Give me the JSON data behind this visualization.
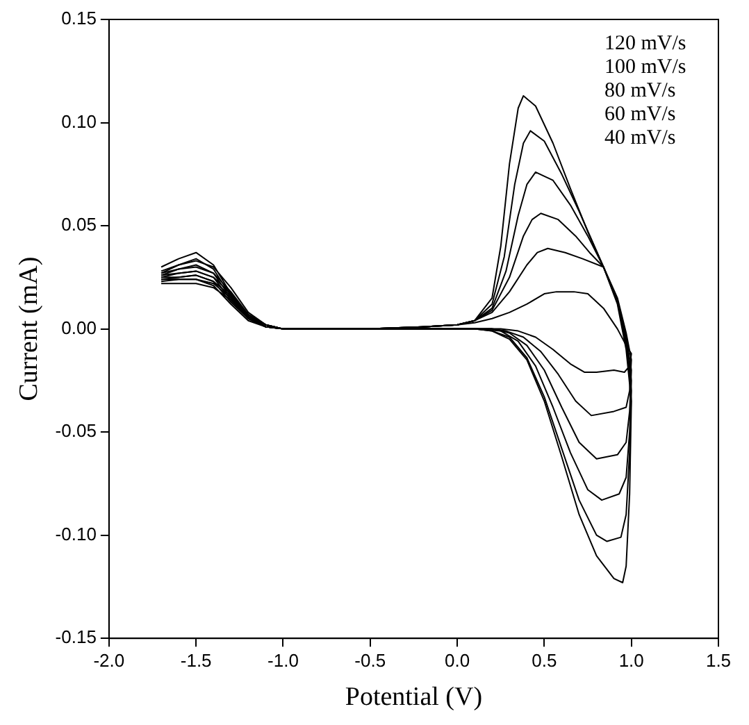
{
  "chart_data": {
    "type": "line",
    "xlabel": "Potential (V)",
    "ylabel": "Current (mA)",
    "xlim": [
      -2.0,
      1.5
    ],
    "ylim": [
      -0.15,
      0.15
    ],
    "xticks": [
      {
        "value": -2,
        "label": "-2.0"
      },
      {
        "value": -1.5,
        "label": "-1.5"
      },
      {
        "value": -1,
        "label": "-1.0"
      },
      {
        "value": -0.5,
        "label": "-0.5"
      },
      {
        "value": 0,
        "label": "0.0"
      },
      {
        "value": 0.5,
        "label": "0.5"
      },
      {
        "value": 1,
        "label": "1.0"
      },
      {
        "value": 1.5,
        "label": "1.5"
      }
    ],
    "yticks": [
      {
        "value": -0.15,
        "label": "-0.15"
      },
      {
        "value": -0.1,
        "label": "-0.10"
      },
      {
        "value": -0.05,
        "label": "-0.05"
      },
      {
        "value": 0,
        "label": "0.00"
      },
      {
        "value": 0.05,
        "label": "0.05"
      },
      {
        "value": 0.1,
        "label": "0.10"
      },
      {
        "value": 0.15,
        "label": "0.15"
      }
    ],
    "grid": false,
    "legend": false,
    "marker": "none",
    "line_style": "solid",
    "annotations": [
      "120 mV/s",
      "100 mV/s",
      "80 mV/s",
      "60 mV/s",
      "40 mV/s"
    ],
    "series": [
      {
        "color": "#000000",
        "x": [
          -1.7,
          -1.6,
          -1.5,
          -1.4,
          -1.3,
          -1.2,
          -1.1,
          -1.0,
          -0.5,
          -0.2,
          0,
          0.1,
          0.2,
          0.25,
          0.3,
          0.35,
          0.38,
          0.45,
          0.55,
          0.65,
          0.75,
          0.84,
          0.92,
          0.97,
          1.0,
          0.99,
          0.97,
          0.95,
          0.9,
          0.8,
          0.7,
          0.6,
          0.5,
          0.4,
          0.3,
          0.2,
          0.1,
          -0.2,
          -1.0,
          -1.1,
          -1.2,
          -1.3,
          -1.4,
          -1.5,
          -1.6,
          -1.7
        ],
        "values": [
          0.03,
          0.034,
          0.037,
          0.031,
          0.017,
          0.006,
          0.001,
          0,
          0,
          0.001,
          0.002,
          0.004,
          0.015,
          0.04,
          0.08,
          0.107,
          0.113,
          0.108,
          0.09,
          0.068,
          0.047,
          0.03,
          0.012,
          -0.01,
          -0.035,
          -0.08,
          -0.115,
          -0.123,
          -0.121,
          -0.11,
          -0.09,
          -0.062,
          -0.035,
          -0.015,
          -0.005,
          -0.001,
          0,
          0,
          0,
          0.002,
          0.008,
          0.02,
          0.03,
          0.033,
          0.031,
          0.027
        ]
      },
      {
        "color": "#000000",
        "x": [
          -1.7,
          -1.6,
          -1.5,
          -1.4,
          -1.3,
          -1.2,
          -1.1,
          -1.0,
          -0.5,
          -0.2,
          0,
          0.1,
          0.2,
          0.27,
          0.33,
          0.38,
          0.42,
          0.5,
          0.6,
          0.7,
          0.84,
          0.92,
          0.97,
          1.0,
          0.99,
          0.97,
          0.94,
          0.86,
          0.8,
          0.7,
          0.6,
          0.5,
          0.4,
          0.3,
          0.2,
          0.1,
          -0.2,
          -1.0,
          -1.1,
          -1.2,
          -1.3,
          -1.4,
          -1.5,
          -1.6,
          -1.7
        ],
        "values": [
          0.028,
          0.031,
          0.034,
          0.029,
          0.016,
          0.006,
          0.001,
          0,
          0,
          0.001,
          0.002,
          0.004,
          0.012,
          0.035,
          0.07,
          0.09,
          0.096,
          0.091,
          0.075,
          0.057,
          0.03,
          0.013,
          -0.008,
          -0.03,
          -0.06,
          -0.09,
          -0.101,
          -0.103,
          -0.1,
          -0.083,
          -0.058,
          -0.033,
          -0.014,
          -0.004,
          -0.001,
          0,
          0,
          0,
          0.002,
          0.007,
          0.018,
          0.027,
          0.03,
          0.029,
          0.026
        ]
      },
      {
        "color": "#000000",
        "x": [
          -1.7,
          -1.6,
          -1.5,
          -1.4,
          -1.3,
          -1.2,
          -1.1,
          -1.0,
          -0.5,
          -0.2,
          0,
          0.1,
          0.2,
          0.28,
          0.35,
          0.4,
          0.45,
          0.55,
          0.65,
          0.75,
          0.84,
          0.92,
          0.97,
          1.0,
          0.99,
          0.97,
          0.93,
          0.83,
          0.75,
          0.65,
          0.55,
          0.45,
          0.35,
          0.25,
          0.1,
          -0.2,
          -1.0,
          -1.1,
          -1.2,
          -1.3,
          -1.4,
          -1.5,
          -1.6,
          -1.7
        ],
        "values": [
          0.027,
          0.029,
          0.031,
          0.027,
          0.015,
          0.005,
          0.001,
          0,
          0,
          0.001,
          0.002,
          0.004,
          0.01,
          0.028,
          0.055,
          0.07,
          0.076,
          0.072,
          0.06,
          0.045,
          0.03,
          0.013,
          -0.006,
          -0.025,
          -0.05,
          -0.072,
          -0.08,
          -0.083,
          -0.078,
          -0.06,
          -0.038,
          -0.018,
          -0.006,
          -0.001,
          0,
          0,
          0,
          0.002,
          0.007,
          0.017,
          0.025,
          0.028,
          0.027,
          0.025
        ]
      },
      {
        "color": "#000000",
        "x": [
          -1.7,
          -1.6,
          -1.5,
          -1.4,
          -1.3,
          -1.2,
          -1.1,
          -1.0,
          -0.5,
          -0.2,
          0,
          0.1,
          0.2,
          0.3,
          0.38,
          0.43,
          0.48,
          0.58,
          0.68,
          0.76,
          0.84,
          0.92,
          0.97,
          1.0,
          0.99,
          0.97,
          0.92,
          0.8,
          0.7,
          0.6,
          0.5,
          0.4,
          0.3,
          0.2,
          -0.2,
          -1.0,
          -1.1,
          -1.2,
          -1.3,
          -1.4,
          -1.5,
          -1.6,
          -1.7
        ],
        "values": [
          0.026,
          0.027,
          0.028,
          0.025,
          0.014,
          0.005,
          0.001,
          0,
          0,
          0.001,
          0.002,
          0.004,
          0.009,
          0.025,
          0.045,
          0.053,
          0.056,
          0.053,
          0.045,
          0.037,
          0.03,
          0.014,
          -0.004,
          -0.02,
          -0.04,
          -0.055,
          -0.061,
          -0.063,
          -0.055,
          -0.038,
          -0.02,
          -0.008,
          -0.002,
          0,
          0,
          0,
          0.002,
          0.006,
          0.016,
          0.023,
          0.026,
          0.025,
          0.024
        ]
      },
      {
        "color": "#000000",
        "x": [
          -1.7,
          -1.6,
          -1.5,
          -1.4,
          -1.3,
          -1.2,
          -1.1,
          -1.0,
          -0.5,
          -0.2,
          0,
          0.1,
          0.2,
          0.3,
          0.4,
          0.46,
          0.52,
          0.62,
          0.72,
          0.84,
          0.92,
          0.97,
          1.0,
          0.99,
          0.97,
          0.9,
          0.77,
          0.68,
          0.58,
          0.48,
          0.38,
          0.28,
          0.2,
          -0.2,
          -1.0,
          -1.1,
          -1.2,
          -1.3,
          -1.4,
          -1.5,
          -1.6,
          -1.7
        ],
        "values": [
          0.025,
          0.025,
          0.026,
          0.023,
          0.013,
          0.005,
          0.001,
          0,
          0,
          0.001,
          0.002,
          0.004,
          0.008,
          0.018,
          0.031,
          0.037,
          0.039,
          0.037,
          0.034,
          0.03,
          0.015,
          -0.002,
          -0.015,
          -0.03,
          -0.038,
          -0.04,
          -0.042,
          -0.035,
          -0.022,
          -0.011,
          -0.004,
          -0.001,
          0,
          0,
          0,
          0.002,
          0.006,
          0.015,
          0.022,
          0.024,
          0.024,
          0.023
        ]
      },
      {
        "color": "#000000",
        "x": [
          -1.7,
          -1.6,
          -1.5,
          -1.4,
          -1.3,
          -1.2,
          -1.1,
          -1.0,
          -0.5,
          -0.2,
          0,
          0.1,
          0.2,
          0.3,
          0.4,
          0.5,
          0.57,
          0.67,
          0.75,
          0.84,
          0.92,
          0.97,
          1.0,
          0.99,
          0.96,
          0.9,
          0.8,
          0.73,
          0.65,
          0.55,
          0.45,
          0.35,
          0.25,
          -0.2,
          -1.0,
          -1.1,
          -1.2,
          -1.3,
          -1.4,
          -1.5,
          -1.6,
          -1.7
        ],
        "values": [
          0.024,
          0.024,
          0.024,
          0.021,
          0.012,
          0.004,
          0.001,
          0,
          0,
          0.001,
          0.002,
          0.003,
          0.005,
          0.008,
          0.012,
          0.017,
          0.018,
          0.018,
          0.017,
          0.01,
          0,
          -0.008,
          -0.012,
          -0.018,
          -0.021,
          -0.02,
          -0.021,
          -0.021,
          -0.017,
          -0.01,
          -0.004,
          -0.001,
          0,
          0,
          0,
          0.002,
          0.006,
          0.014,
          0.02,
          0.022,
          0.022,
          0.022
        ]
      }
    ]
  }
}
